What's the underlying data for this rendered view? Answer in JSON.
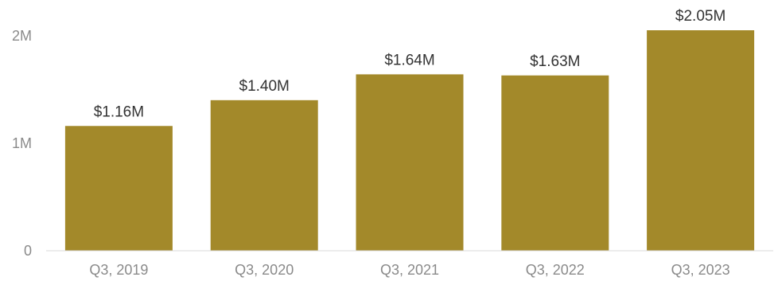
{
  "chart_data": {
    "type": "bar",
    "categories": [
      "Q3, 2019",
      "Q3, 2020",
      "Q3, 2021",
      "Q3, 2022",
      "Q3, 2023"
    ],
    "values": [
      1160000,
      1400000,
      1640000,
      1630000,
      2050000
    ],
    "data_labels": [
      "$1.16M",
      "$1.40M",
      "$1.64M",
      "$1.63M",
      "$2.05M"
    ],
    "title": "",
    "xlabel": "",
    "ylabel": "",
    "ylim": [
      0,
      2050000
    ],
    "yticks": [
      {
        "value": 0,
        "label": "0"
      },
      {
        "value": 1000000,
        "label": "1M"
      },
      {
        "value": 2000000,
        "label": "2M"
      }
    ],
    "grid": false,
    "bar_color": "#a3892a",
    "axis_color": "#d9d9d9"
  }
}
